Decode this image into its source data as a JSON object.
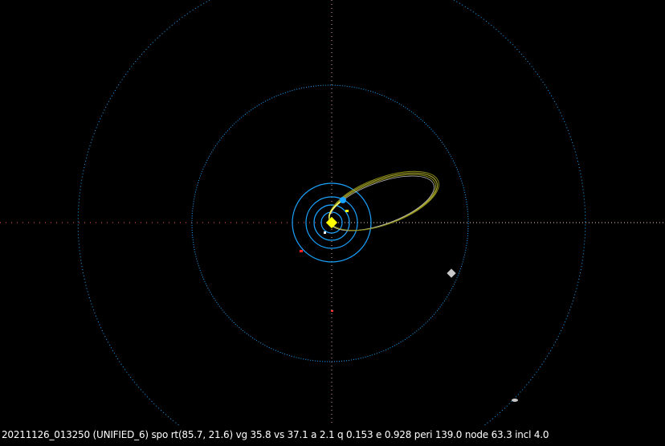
{
  "status_line": "20211126_013250 (UNIFIED_6) spo rt(85.7, 21.6) vg 35.8 vs 37.1 a 2.1 q 0.153 e 0.928 peri 139.0 node 63.3 incl 4.0",
  "colors": {
    "background": "#000000",
    "planet_orbit": "#1aa3ff",
    "meteoroid_orbit": "#9a9a20",
    "sun": "#ffff00",
    "earth": "#1aa3ff",
    "mars": "#ff2020",
    "jupiter": "#c8c8c8",
    "axis": "#ff9f9f"
  },
  "icons": [
    "sun-marker",
    "earth-marker",
    "mars-marker",
    "jupiter-marker",
    "saturn-marker"
  ]
}
